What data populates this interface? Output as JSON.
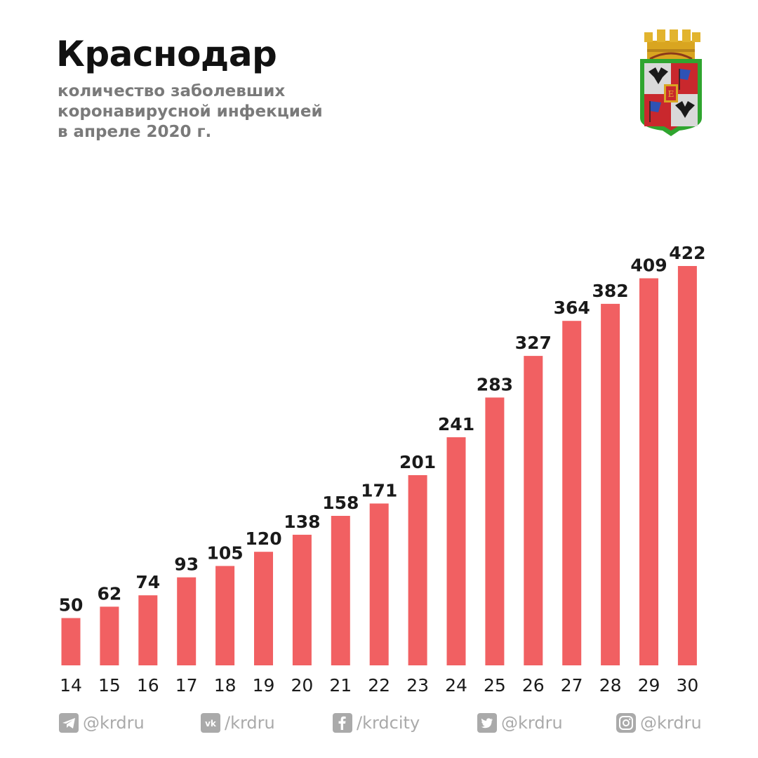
{
  "header": {
    "title": "Краснодар",
    "subtitle_lines": [
      "количество заболевших",
      "коронавирусной инфекцией",
      "в апреле 2020 г."
    ]
  },
  "colors": {
    "bar": "#f16062",
    "label": "#1a1a1a",
    "footer": "#aaaaaa"
  },
  "chart_data": {
    "type": "bar",
    "title": "",
    "xlabel": "",
    "ylabel": "",
    "categories": [
      "14",
      "15",
      "16",
      "17",
      "18",
      "19",
      "20",
      "21",
      "22",
      "23",
      "24",
      "25",
      "26",
      "27",
      "28",
      "29",
      "30"
    ],
    "values": [
      50,
      62,
      74,
      93,
      105,
      120,
      138,
      158,
      171,
      201,
      241,
      283,
      327,
      364,
      382,
      409,
      422
    ],
    "ylim": [
      0,
      422
    ],
    "grid": false,
    "data_labels": true
  },
  "footer": {
    "socials": [
      {
        "icon": "telegram-icon",
        "label": "@krdru"
      },
      {
        "icon": "vk-icon",
        "label": "/krdru"
      },
      {
        "icon": "facebook-icon",
        "label": "/krdcity"
      },
      {
        "icon": "twitter-icon",
        "label": "@krdru"
      },
      {
        "icon": "instagram-icon",
        "label": "@krdru"
      }
    ]
  }
}
